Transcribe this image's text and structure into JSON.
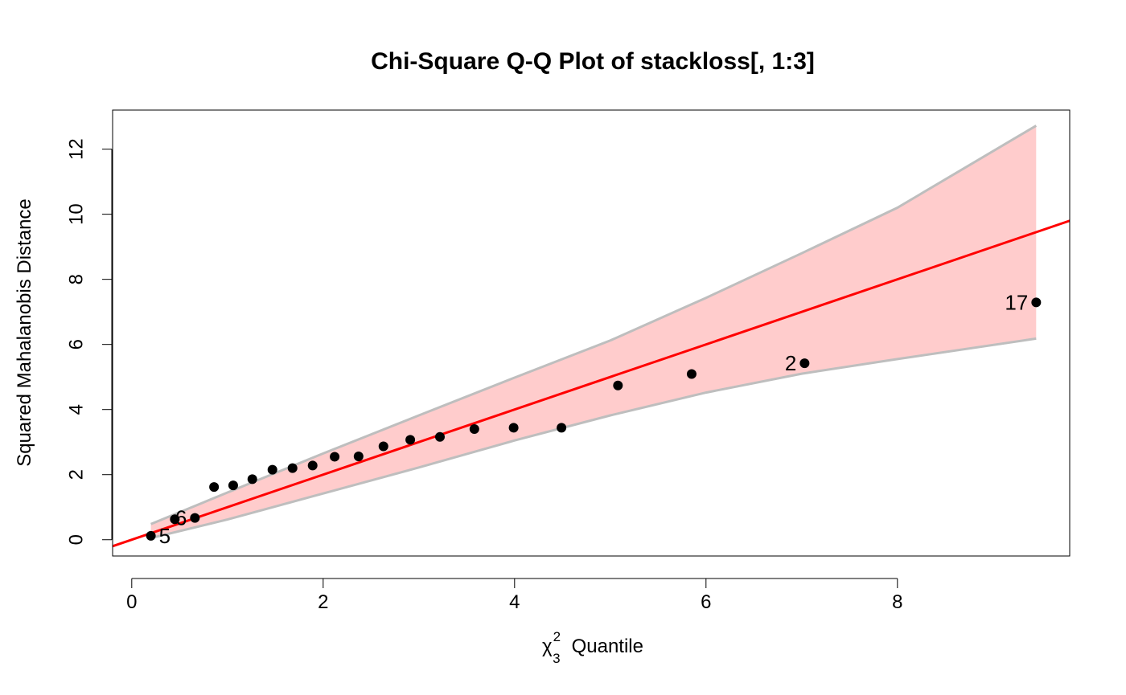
{
  "chart_data": {
    "type": "scatter",
    "title": "Chi-Square Q-Q Plot of stackloss[, 1:3]",
    "xlabel": {
      "symbol": "χ",
      "superscript": "2",
      "subscript": "3",
      "text": "Quantile"
    },
    "ylabel": "Squared Mahalanobis Distance",
    "xlim": [
      -0.2,
      9.8
    ],
    "ylim": [
      -0.5,
      13.2
    ],
    "x_ticks": [
      {
        "value": 0,
        "label": "0"
      },
      {
        "value": 2,
        "label": "2"
      },
      {
        "value": 4,
        "label": "4"
      },
      {
        "value": 6,
        "label": "6"
      },
      {
        "value": 8,
        "label": "8"
      }
    ],
    "y_ticks": [
      {
        "value": 0,
        "label": "0"
      },
      {
        "value": 2,
        "label": "2"
      },
      {
        "value": 4,
        "label": "4"
      },
      {
        "value": 6,
        "label": "6"
      },
      {
        "value": 8,
        "label": "8"
      },
      {
        "value": 10,
        "label": "10"
      },
      {
        "value": 12,
        "label": "12"
      }
    ],
    "grid": false,
    "colors": {
      "points": "#000000",
      "reference_line": "#ff0000",
      "band_fill": "#ffcccc",
      "band_edge": "#bebebe"
    },
    "points": [
      {
        "x": 0.2,
        "y": 0.12
      },
      {
        "x": 0.45,
        "y": 0.63
      },
      {
        "x": 0.66,
        "y": 0.67
      },
      {
        "x": 0.86,
        "y": 1.62
      },
      {
        "x": 1.06,
        "y": 1.67
      },
      {
        "x": 1.26,
        "y": 1.86
      },
      {
        "x": 1.47,
        "y": 2.15
      },
      {
        "x": 1.68,
        "y": 2.2
      },
      {
        "x": 1.89,
        "y": 2.28
      },
      {
        "x": 2.12,
        "y": 2.55
      },
      {
        "x": 2.37,
        "y": 2.56
      },
      {
        "x": 2.63,
        "y": 2.87
      },
      {
        "x": 2.91,
        "y": 3.07
      },
      {
        "x": 3.22,
        "y": 3.16
      },
      {
        "x": 3.58,
        "y": 3.4
      },
      {
        "x": 3.99,
        "y": 3.44
      },
      {
        "x": 4.49,
        "y": 3.44
      },
      {
        "x": 5.08,
        "y": 4.74
      },
      {
        "x": 5.85,
        "y": 5.09
      },
      {
        "x": 7.03,
        "y": 5.42
      },
      {
        "x": 9.45,
        "y": 7.29
      }
    ],
    "point_labels": [
      {
        "text": "5",
        "x": 0.2,
        "y": 0.12,
        "side": "right"
      },
      {
        "text": "6",
        "x": 0.66,
        "y": 0.67,
        "side": "left"
      },
      {
        "text": "2",
        "x": 7.03,
        "y": 5.42,
        "side": "left"
      },
      {
        "text": "17",
        "x": 9.45,
        "y": 7.29,
        "side": "left"
      }
    ],
    "reference_line": {
      "intercept": 0,
      "slope": 1
    },
    "band": {
      "x": [
        0.2,
        1.0,
        2.0,
        3.0,
        4.0,
        5.0,
        6.0,
        7.0,
        8.0,
        9.45
      ],
      "upper": [
        0.48,
        1.45,
        2.65,
        3.82,
        4.98,
        6.12,
        7.43,
        8.8,
        10.2,
        12.72
      ],
      "lower": [
        0.05,
        0.62,
        1.42,
        2.22,
        3.05,
        3.82,
        4.52,
        5.1,
        5.55,
        6.18
      ]
    }
  }
}
